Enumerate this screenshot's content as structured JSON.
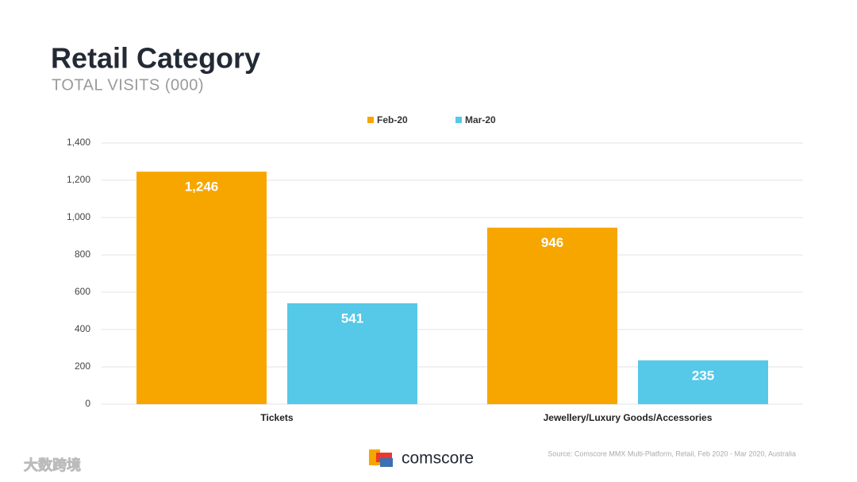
{
  "chart_data": {
    "type": "bar",
    "title": "Retail Category",
    "subtitle": "TOTAL VISITS (000)",
    "categories": [
      "Tickets",
      "Jewellery/Luxury Goods/Accessories"
    ],
    "series": [
      {
        "name": "Feb-20",
        "color": "#f7a600",
        "values": [
          1246,
          946
        ],
        "value_labels": [
          "1,246",
          "946"
        ]
      },
      {
        "name": "Mar-20",
        "color": "#56c8e8",
        "values": [
          541,
          235
        ]
      }
    ],
    "ylim": [
      0,
      1400
    ],
    "yticks": [
      0,
      200,
      400,
      600,
      800,
      {
        "value": 1000,
        "label": "1,000"
      },
      {
        "value": 1200,
        "label": "1,200"
      },
      {
        "value": 1400,
        "label": "1,400"
      }
    ],
    "grid": true,
    "legend": "top",
    "source": "Source: Comscore MMX Multi-Platform, Retail, Feb 2020 - Mar 2020, Australia",
    "logo": "comscore",
    "watermark": "大数跨境"
  }
}
